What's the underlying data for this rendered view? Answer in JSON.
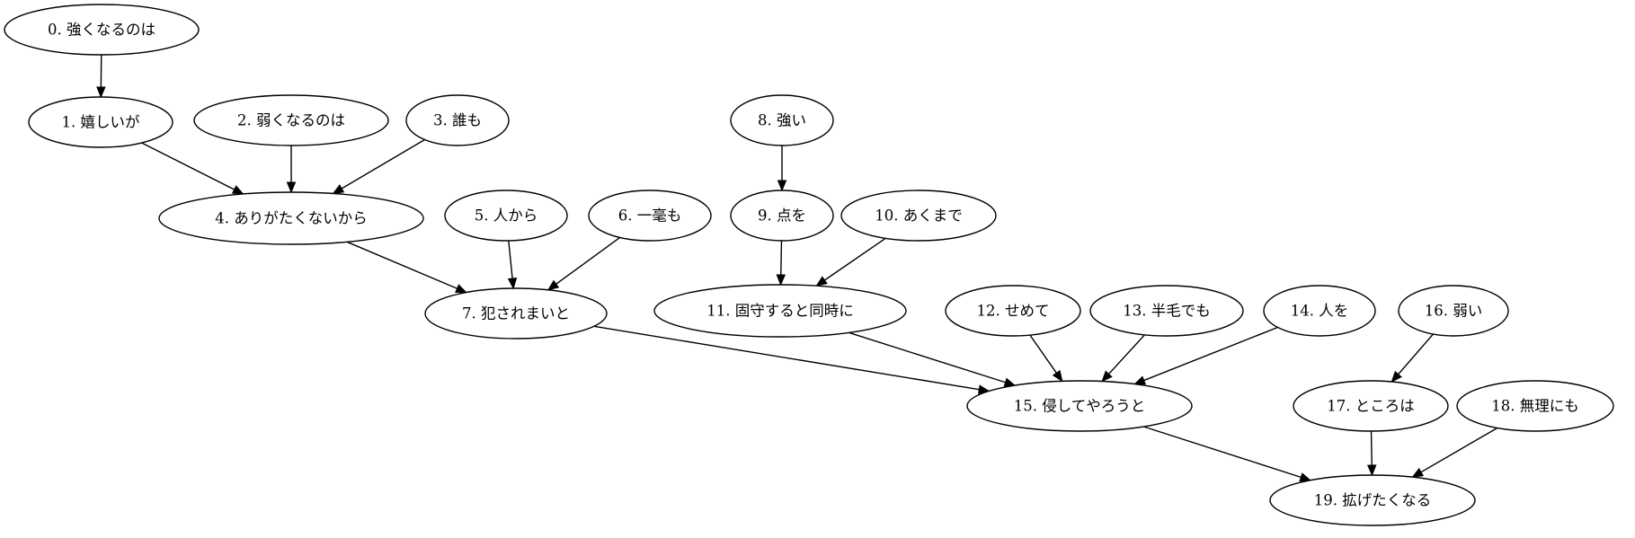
{
  "graph": {
    "type": "directed",
    "nodes": [
      {
        "id": "0",
        "label": "0. 強くなるのは"
      },
      {
        "id": "1",
        "label": "1. 嬉しいが"
      },
      {
        "id": "2",
        "label": "2. 弱くなるのは"
      },
      {
        "id": "3",
        "label": "3. 誰も"
      },
      {
        "id": "4",
        "label": "4. ありがたくないから"
      },
      {
        "id": "5",
        "label": "5. 人から"
      },
      {
        "id": "6",
        "label": "6. 一毫も"
      },
      {
        "id": "7",
        "label": "7. 犯されまいと"
      },
      {
        "id": "8",
        "label": "8. 強い"
      },
      {
        "id": "9",
        "label": "9. 点を"
      },
      {
        "id": "10",
        "label": "10. あくまで"
      },
      {
        "id": "11",
        "label": "11. 固守すると同時に"
      },
      {
        "id": "12",
        "label": "12. せめて"
      },
      {
        "id": "13",
        "label": "13. 半毛でも"
      },
      {
        "id": "14",
        "label": "14. 人を"
      },
      {
        "id": "15",
        "label": "15. 侵してやろうと"
      },
      {
        "id": "16",
        "label": "16. 弱い"
      },
      {
        "id": "17",
        "label": "17. ところは"
      },
      {
        "id": "18",
        "label": "18. 無理にも"
      },
      {
        "id": "19",
        "label": "19. 拡げたくなる"
      }
    ],
    "edges": [
      {
        "from": "0",
        "to": "1"
      },
      {
        "from": "1",
        "to": "4"
      },
      {
        "from": "2",
        "to": "4"
      },
      {
        "from": "3",
        "to": "4"
      },
      {
        "from": "4",
        "to": "7"
      },
      {
        "from": "5",
        "to": "7"
      },
      {
        "from": "6",
        "to": "7"
      },
      {
        "from": "8",
        "to": "9"
      },
      {
        "from": "9",
        "to": "11"
      },
      {
        "from": "10",
        "to": "11"
      },
      {
        "from": "7",
        "to": "15"
      },
      {
        "from": "11",
        "to": "15"
      },
      {
        "from": "12",
        "to": "15"
      },
      {
        "from": "13",
        "to": "15"
      },
      {
        "from": "14",
        "to": "15"
      },
      {
        "from": "16",
        "to": "17"
      },
      {
        "from": "15",
        "to": "19"
      },
      {
        "from": "17",
        "to": "19"
      },
      {
        "from": "18",
        "to": "19"
      }
    ]
  }
}
